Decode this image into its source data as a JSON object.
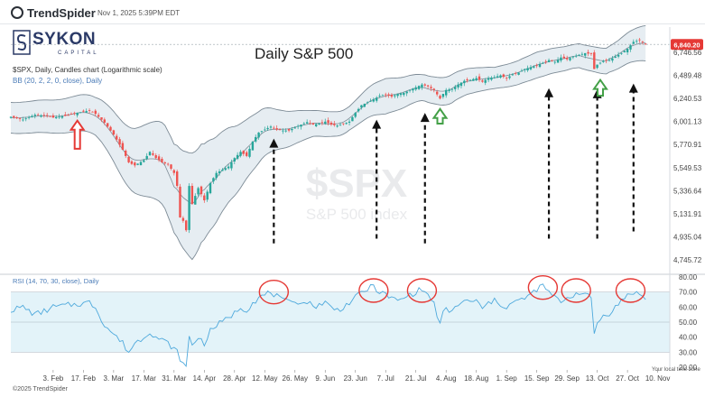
{
  "header": {
    "brand": "TrendSpider",
    "timestamp": "Nov 1, 2025 5:39PM EDT",
    "copyright": "©2025 TrendSpider"
  },
  "watermark_logo": {
    "name": "SYKON",
    "sub": "CAPITAL"
  },
  "symbol_line": "$SPX, Daily, Candles chart (Logarithmic scale)",
  "bb_line": "BB (20, 2, 2, 0, close), Daily",
  "rsi_line": "RSI (14, 70, 30, close), Daily",
  "tz_note": "Your local time zone",
  "colors": {
    "up": "#26a69a",
    "down": "#ef5350",
    "band_fill": "#dde7ee",
    "band_line": "#7d8b96",
    "rsi": "#4ea9dc",
    "rsi_zone": "#e3f3f9",
    "circle": "#e53935",
    "arrow_black": "#111111",
    "arrow_red": "#e53935",
    "arrow_green": "#43a047",
    "price_tag": "#e53935"
  },
  "chart_data": [
    {
      "type": "candlestick",
      "title": "Daily S&P 500",
      "watermark": {
        "symbol": "$SPX",
        "name": "S&P 500 index"
      },
      "scale": "log",
      "ylim": [
        4745.72,
        6980
      ],
      "y_ticks": [
        "6,746.56",
        "6,489.48",
        "6,240.53",
        "6,001.13",
        "5,770.91",
        "5,549.53",
        "5,336.64",
        "5,131.91",
        "4,935.04",
        "4,745.72"
      ],
      "y_tick_values": [
        6746.56,
        6489.48,
        6240.53,
        6001.13,
        5770.91,
        5549.53,
        5336.64,
        5131.91,
        4935.04,
        4745.72
      ],
      "last_price": "6,840.20",
      "last_price_value": 6840.2,
      "x_ticks": [
        "3. Feb",
        "17. Feb",
        "3. Mar",
        "17. Mar",
        "31. Mar",
        "14. Apr",
        "28. Apr",
        "12. May",
        "26. May",
        "9. Jun",
        "23. Jun",
        "7. Jul",
        "21. Jul",
        "4. Aug",
        "18. Aug",
        "1. Sep",
        "15. Sep",
        "29. Sep",
        "13. Oct",
        "27. Oct",
        "10. Nov"
      ],
      "x_tick_positions": [
        0,
        10,
        20,
        30,
        40,
        50,
        60,
        70,
        80,
        90,
        100,
        110,
        120,
        130,
        140,
        150,
        160,
        170,
        180,
        190,
        200
      ],
      "close_anchors": [
        [
          -14,
          6050
        ],
        [
          -10,
          6020
        ],
        [
          -6,
          6070
        ],
        [
          -2,
          6060
        ],
        [
          0,
          6040
        ],
        [
          4,
          6060
        ],
        [
          8,
          6090
        ],
        [
          12,
          6115
        ],
        [
          14,
          6080
        ],
        [
          17,
          5990
        ],
        [
          20,
          5870
        ],
        [
          23,
          5720
        ],
        [
          25,
          5600
        ],
        [
          27,
          5570
        ],
        [
          30,
          5620
        ],
        [
          32,
          5700
        ],
        [
          34,
          5640
        ],
        [
          36,
          5600
        ],
        [
          38,
          5580
        ],
        [
          40,
          5500
        ],
        [
          41,
          5380
        ],
        [
          42,
          5100
        ],
        [
          43,
          5070
        ],
        [
          44,
          4990
        ],
        [
          45,
          5380
        ],
        [
          46,
          5220
        ],
        [
          48,
          5360
        ],
        [
          50,
          5250
        ],
        [
          52,
          5405
        ],
        [
          54,
          5500
        ],
        [
          56,
          5530
        ],
        [
          58,
          5560
        ],
        [
          60,
          5640
        ],
        [
          62,
          5700
        ],
        [
          64,
          5660
        ],
        [
          66,
          5800
        ],
        [
          68,
          5890
        ],
        [
          70,
          5920
        ],
        [
          72,
          5950
        ],
        [
          74,
          5920
        ],
        [
          76,
          5910
        ],
        [
          78,
          5910
        ],
        [
          80,
          5940
        ],
        [
          82,
          5970
        ],
        [
          84,
          5995
        ],
        [
          86,
          5970
        ],
        [
          88,
          5980
        ],
        [
          90,
          6000
        ],
        [
          92,
          5970
        ],
        [
          94,
          5960
        ],
        [
          96,
          5975
        ],
        [
          98,
          6000
        ],
        [
          100,
          6090
        ],
        [
          102,
          6170
        ],
        [
          104,
          6200
        ],
        [
          106,
          6230
        ],
        [
          108,
          6270
        ],
        [
          110,
          6280
        ],
        [
          112,
          6260
        ],
        [
          114,
          6290
        ],
        [
          116,
          6300
        ],
        [
          118,
          6330
        ],
        [
          120,
          6360
        ],
        [
          122,
          6390
        ],
        [
          124,
          6370
        ],
        [
          126,
          6330
        ],
        [
          128,
          6240
        ],
        [
          129,
          6290
        ],
        [
          130,
          6330
        ],
        [
          132,
          6340
        ],
        [
          134,
          6390
        ],
        [
          136,
          6430
        ],
        [
          138,
          6440
        ],
        [
          140,
          6460
        ],
        [
          142,
          6420
        ],
        [
          144,
          6460
        ],
        [
          146,
          6470
        ],
        [
          148,
          6490
        ],
        [
          150,
          6460
        ],
        [
          152,
          6500
        ],
        [
          154,
          6520
        ],
        [
          156,
          6560
        ],
        [
          158,
          6580
        ],
        [
          160,
          6600
        ],
        [
          162,
          6630
        ],
        [
          164,
          6660
        ],
        [
          166,
          6640
        ],
        [
          168,
          6690
        ],
        [
          170,
          6670
        ],
        [
          172,
          6700
        ],
        [
          174,
          6720
        ],
        [
          176,
          6740
        ],
        [
          178,
          6730
        ],
        [
          179,
          6560
        ],
        [
          180,
          6610
        ],
        [
          182,
          6650
        ],
        [
          184,
          6660
        ],
        [
          186,
          6700
        ],
        [
          188,
          6740
        ],
        [
          190,
          6790
        ],
        [
          192,
          6870
        ],
        [
          194,
          6890
        ],
        [
          196,
          6840
        ]
      ],
      "band_half_width_anchors": [
        [
          -14,
          0.026
        ],
        [
          0,
          0.028
        ],
        [
          14,
          0.032
        ],
        [
          30,
          0.06
        ],
        [
          40,
          0.075
        ],
        [
          46,
          0.09
        ],
        [
          54,
          0.072
        ],
        [
          64,
          0.05
        ],
        [
          74,
          0.034
        ],
        [
          86,
          0.022
        ],
        [
          98,
          0.02
        ],
        [
          110,
          0.03
        ],
        [
          122,
          0.022
        ],
        [
          132,
          0.024
        ],
        [
          146,
          0.018
        ],
        [
          160,
          0.022
        ],
        [
          172,
          0.02
        ],
        [
          184,
          0.022
        ],
        [
          196,
          0.03
        ]
      ]
    },
    {
      "type": "line",
      "title": "RSI (14, 70, 30, close)",
      "ylim": [
        20,
        80
      ],
      "y_ticks": [
        "80.00",
        "70.00",
        "60.00",
        "50.00",
        "40.00",
        "30.00",
        "20.00"
      ],
      "y_tick_values": [
        80,
        70,
        60,
        50,
        40,
        30,
        20
      ],
      "zone": [
        30,
        70
      ],
      "midline": 50,
      "rsi_anchors": [
        [
          -14,
          58
        ],
        [
          -10,
          60
        ],
        [
          -6,
          55
        ],
        [
          -2,
          58
        ],
        [
          0,
          60
        ],
        [
          4,
          61
        ],
        [
          8,
          62
        ],
        [
          12,
          63
        ],
        [
          14,
          60
        ],
        [
          17,
          48
        ],
        [
          20,
          42
        ],
        [
          23,
          36
        ],
        [
          25,
          30
        ],
        [
          27,
          36
        ],
        [
          30,
          40
        ],
        [
          32,
          44
        ],
        [
          34,
          40
        ],
        [
          36,
          38
        ],
        [
          38,
          36
        ],
        [
          40,
          32
        ],
        [
          41,
          30
        ],
        [
          42,
          26
        ],
        [
          43,
          22
        ],
        [
          44,
          20
        ],
        [
          45,
          40
        ],
        [
          46,
          35
        ],
        [
          48,
          40
        ],
        [
          50,
          36
        ],
        [
          52,
          44
        ],
        [
          54,
          48
        ],
        [
          56,
          50
        ],
        [
          58,
          53
        ],
        [
          60,
          56
        ],
        [
          62,
          60
        ],
        [
          64,
          58
        ],
        [
          66,
          63
        ],
        [
          68,
          66
        ],
        [
          70,
          68
        ],
        [
          72,
          70
        ],
        [
          74,
          67
        ],
        [
          76,
          64
        ],
        [
          78,
          63
        ],
        [
          80,
          65
        ],
        [
          82,
          62
        ],
        [
          84,
          64
        ],
        [
          86,
          60
        ],
        [
          88,
          62
        ],
        [
          90,
          63
        ],
        [
          92,
          60
        ],
        [
          94,
          58
        ],
        [
          96,
          60
        ],
        [
          98,
          63
        ],
        [
          100,
          66
        ],
        [
          102,
          70
        ],
        [
          104,
          72
        ],
        [
          106,
          74
        ],
        [
          108,
          70
        ],
        [
          110,
          68
        ],
        [
          112,
          66
        ],
        [
          114,
          64
        ],
        [
          116,
          66
        ],
        [
          118,
          68
        ],
        [
          120,
          70
        ],
        [
          122,
          72
        ],
        [
          124,
          68
        ],
        [
          126,
          62
        ],
        [
          128,
          48
        ],
        [
          129,
          56
        ],
        [
          130,
          58
        ],
        [
          132,
          57
        ],
        [
          134,
          62
        ],
        [
          136,
          64
        ],
        [
          138,
          63
        ],
        [
          140,
          65
        ],
        [
          142,
          58
        ],
        [
          144,
          63
        ],
        [
          146,
          64
        ],
        [
          148,
          62
        ],
        [
          150,
          60
        ],
        [
          152,
          63
        ],
        [
          154,
          64
        ],
        [
          156,
          66
        ],
        [
          158,
          68
        ],
        [
          160,
          72
        ],
        [
          162,
          74
        ],
        [
          164,
          70
        ],
        [
          166,
          66
        ],
        [
          168,
          64
        ],
        [
          170,
          66
        ],
        [
          172,
          68
        ],
        [
          174,
          70
        ],
        [
          176,
          68
        ],
        [
          178,
          66
        ],
        [
          179,
          42
        ],
        [
          180,
          50
        ],
        [
          182,
          54
        ],
        [
          184,
          56
        ],
        [
          186,
          60
        ],
        [
          188,
          64
        ],
        [
          190,
          68
        ],
        [
          192,
          70
        ],
        [
          194,
          69
        ],
        [
          196,
          64
        ]
      ]
    }
  ],
  "annotations": {
    "black_arrows": [
      {
        "x": 73,
        "from": 4880,
        "to": 5830
      },
      {
        "x": 107,
        "from": 4920,
        "to": 6020
      },
      {
        "x": 123,
        "from": 4880,
        "to": 6090
      },
      {
        "x": 164,
        "from": 4920,
        "to": 6350
      },
      {
        "x": 180,
        "from": 4920,
        "to": 6340
      },
      {
        "x": 192,
        "from": 4980,
        "to": 6400
      }
    ],
    "red_arrow": {
      "x": 8,
      "from": 5730,
      "to": 6010
    },
    "green_arrows": [
      {
        "x": 128,
        "from": 5980,
        "to": 6130
      },
      {
        "x": 181,
        "from": 6270,
        "to": 6440
      }
    ],
    "rsi_circles": [
      {
        "x": 73,
        "rsi": 70
      },
      {
        "x": 106,
        "rsi": 71
      },
      {
        "x": 122,
        "rsi": 71
      },
      {
        "x": 162,
        "rsi": 73
      },
      {
        "x": 173,
        "rsi": 71
      },
      {
        "x": 191,
        "rsi": 71
      }
    ]
  }
}
